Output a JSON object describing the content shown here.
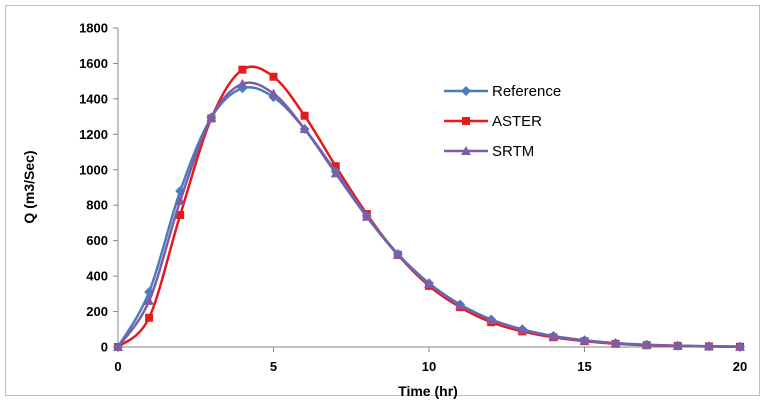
{
  "chart_data": {
    "type": "line",
    "title": "",
    "xlabel": "Time (hr)",
    "ylabel": "Q (m3/Sec)",
    "xlim": [
      0,
      20
    ],
    "ylim": [
      0,
      1800
    ],
    "xticks": [
      0,
      5,
      10,
      15,
      20
    ],
    "yticks": [
      0,
      200,
      400,
      600,
      800,
      1000,
      1200,
      1400,
      1600,
      1800
    ],
    "grid": false,
    "legend_position": "right",
    "x": [
      0,
      1,
      2,
      3,
      4,
      5,
      6,
      7,
      8,
      9,
      10,
      11,
      12,
      13,
      14,
      15,
      16,
      17,
      18,
      19,
      20
    ],
    "series": [
      {
        "name": "Reference",
        "color": "#4a7ebb",
        "marker": "diamond",
        "values": [
          0,
          310,
          880,
          1295,
          1460,
          1410,
          1230,
          990,
          740,
          525,
          360,
          240,
          155,
          100,
          62,
          38,
          22,
          13,
          7,
          4,
          2
        ]
      },
      {
        "name": "ASTER",
        "color": "#e41a1c",
        "marker": "square",
        "values": [
          0,
          165,
          745,
          1290,
          1565,
          1525,
          1305,
          1020,
          750,
          520,
          345,
          225,
          140,
          88,
          55,
          33,
          18,
          10,
          6,
          3,
          1
        ]
      },
      {
        "name": "SRTM",
        "color": "#7b5ea7",
        "marker": "triangle",
        "values": [
          0,
          260,
          825,
          1295,
          1485,
          1430,
          1230,
          980,
          735,
          520,
          355,
          235,
          152,
          97,
          60,
          36,
          21,
          12,
          7,
          4,
          2
        ]
      }
    ]
  }
}
